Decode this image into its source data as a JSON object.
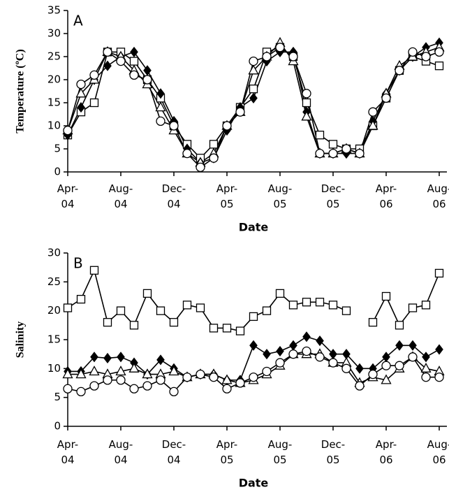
{
  "chart_data": [
    {
      "type": "line",
      "annotation": "A",
      "ylabel": "Temperature (ºC)",
      "xlabel": "Date",
      "x": [
        "2004-04",
        "2004-05",
        "2004-06",
        "2004-07",
        "2004-08",
        "2004-09",
        "2004-10",
        "2004-11",
        "2004-12",
        "2005-01",
        "2005-02",
        "2005-03",
        "2005-04",
        "2005-05",
        "2005-06",
        "2005-07",
        "2005-08",
        "2005-09",
        "2005-10",
        "2005-11",
        "2005-12",
        "2006-01",
        "2006-02",
        "2006-03",
        "2006-04",
        "2006-05",
        "2006-06",
        "2006-07",
        "2006-08"
      ],
      "xlim": [
        "2004-04",
        "2006-08"
      ],
      "xticks": [
        {
          "value": "2004-04",
          "label": "Apr-04"
        },
        {
          "value": "2004-08",
          "label": "Aug-04"
        },
        {
          "value": "2004-12",
          "label": "Dec-04"
        },
        {
          "value": "2005-04",
          "label": "Apr-05"
        },
        {
          "value": "2005-08",
          "label": "Aug-05"
        },
        {
          "value": "2005-12",
          "label": "Dec-05"
        },
        {
          "value": "2006-04",
          "label": "Apr-06"
        },
        {
          "value": "2006-08",
          "label": "Aug-06"
        }
      ],
      "ylim": [
        0,
        35
      ],
      "yticks": [
        0,
        5,
        10,
        15,
        20,
        25,
        30,
        35
      ],
      "series": [
        {
          "color": "#000000",
          "marker": "square",
          "values": [
            8,
            13,
            15,
            26,
            26,
            24,
            20,
            16,
            10,
            6,
            3,
            6,
            10,
            14,
            18,
            26,
            27,
            25,
            15,
            8,
            6,
            5,
            5,
            10,
            16,
            22,
            25,
            24,
            23
          ]
        },
        {
          "color": "#000000",
          "marker": "diamond",
          "values": [
            8,
            14,
            20,
            23,
            25,
            26,
            22,
            17,
            11,
            5,
            2,
            3,
            9,
            14,
            16,
            24,
            26,
            26,
            13,
            4,
            4,
            4,
            4,
            11,
            17,
            22,
            25,
            27,
            28
          ]
        },
        {
          "color": "#000000",
          "marker": "triangle",
          "values": [
            9,
            17,
            20,
            26,
            25,
            22,
            19,
            14,
            9,
            4,
            2,
            4,
            10,
            13,
            22,
            25,
            28,
            24,
            12,
            4,
            4,
            5,
            4,
            10,
            17,
            23,
            25,
            26,
            27
          ]
        },
        {
          "color": "#000000",
          "marker": "circle",
          "values": [
            9,
            19,
            21,
            26,
            24,
            21,
            20,
            11,
            10,
            4,
            1,
            3,
            10,
            13,
            24,
            25,
            27,
            25,
            17,
            4,
            4,
            5,
            4,
            13,
            16,
            22,
            26,
            25,
            26
          ]
        }
      ]
    },
    {
      "type": "line",
      "annotation": "B",
      "ylabel": "Salinity",
      "xlabel": "Date",
      "x": [
        "2004-04",
        "2004-05",
        "2004-06",
        "2004-07",
        "2004-08",
        "2004-09",
        "2004-10",
        "2004-11",
        "2004-12",
        "2005-01",
        "2005-02",
        "2005-03",
        "2005-04",
        "2005-05",
        "2005-06",
        "2005-07",
        "2005-08",
        "2005-09",
        "2005-10",
        "2005-11",
        "2005-12",
        "2006-01",
        "2006-02",
        "2006-03",
        "2006-04",
        "2006-05",
        "2006-06",
        "2006-07",
        "2006-08"
      ],
      "xlim": [
        "2004-04",
        "2006-08"
      ],
      "xticks": [
        {
          "value": "2004-04",
          "label": "Apr-04"
        },
        {
          "value": "2004-08",
          "label": "Aug-04"
        },
        {
          "value": "2004-12",
          "label": "Dec-04"
        },
        {
          "value": "2005-04",
          "label": "Apr-05"
        },
        {
          "value": "2005-08",
          "label": "Aug-05"
        },
        {
          "value": "2005-12",
          "label": "Dec-05"
        },
        {
          "value": "2006-04",
          "label": "Apr-06"
        },
        {
          "value": "2006-08",
          "label": "Aug-06"
        }
      ],
      "ylim": [
        0,
        30
      ],
      "yticks": [
        0,
        5,
        10,
        15,
        20,
        25,
        30
      ],
      "series": [
        {
          "color": "#000000",
          "marker": "square",
          "values": [
            20.5,
            22,
            27,
            18,
            20,
            17.5,
            23,
            20,
            18,
            21,
            20.5,
            17,
            17,
            16.5,
            19,
            20,
            23,
            21,
            21.5,
            21.5,
            21,
            20,
            null,
            18,
            22.5,
            17.5,
            20.5,
            21,
            26.5
          ]
        },
        {
          "color": "#000000",
          "marker": "diamond",
          "values": [
            9.5,
            9.5,
            12,
            11.8,
            12,
            11,
            9,
            11.5,
            10,
            8.5,
            9,
            9,
            8,
            8,
            14,
            12.5,
            13,
            14,
            15.5,
            14.8,
            12.5,
            12.5,
            10,
            10,
            12,
            14,
            14,
            12,
            13.3
          ]
        },
        {
          "color": "#000000",
          "marker": "triangle",
          "values": [
            9,
            9,
            9.5,
            9,
            9.5,
            10,
            9,
            9,
            9.5,
            8.5,
            9,
            9,
            8,
            7.5,
            8,
            9,
            10.5,
            12.5,
            12.5,
            12.5,
            11,
            11,
            7.5,
            8.5,
            8,
            10,
            12,
            10,
            9.5
          ]
        },
        {
          "color": "#000000",
          "marker": "circle",
          "values": [
            6.5,
            6,
            7,
            8,
            8,
            6.5,
            7,
            8,
            6,
            8.5,
            9,
            8.5,
            6.5,
            7.5,
            8.5,
            9.5,
            11,
            12.5,
            13,
            12,
            11,
            10,
            7,
            9,
            10.5,
            10.5,
            12,
            8.5,
            8.5
          ]
        }
      ]
    }
  ]
}
